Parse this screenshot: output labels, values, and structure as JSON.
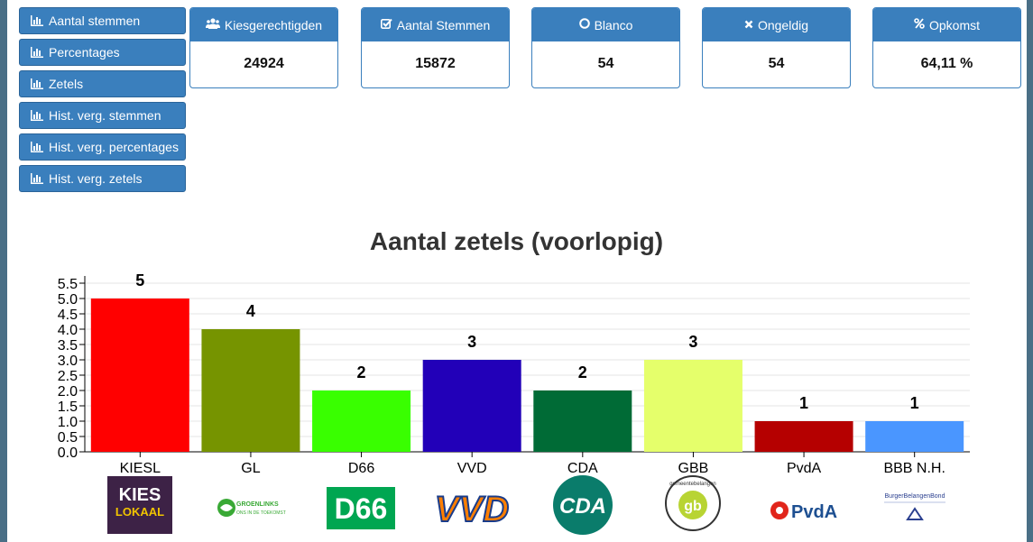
{
  "nav": {
    "items": [
      {
        "label": "Aantal stemmen"
      },
      {
        "label": "Percentages"
      },
      {
        "label": "Zetels"
      },
      {
        "label": "Hist. verg. stemmen"
      },
      {
        "label": "Hist. verg. percentages"
      },
      {
        "label": "Hist. verg. zetels"
      }
    ]
  },
  "stats": [
    {
      "label": "Kiesgerechtigden",
      "value": "24924",
      "icon": "users-icon"
    },
    {
      "label": "Aantal Stemmen",
      "value": "15872",
      "icon": "checkbox-icon"
    },
    {
      "label": "Blanco",
      "value": "54",
      "icon": "circle-icon"
    },
    {
      "label": "Ongeldig",
      "value": "54",
      "icon": "times-icon"
    },
    {
      "label": "Opkomst",
      "value": "64,11 %",
      "icon": "percent-icon"
    }
  ],
  "chart_data": {
    "type": "bar",
    "title": "Aantal zetels (voorlopig)",
    "categories": [
      "KIESL",
      "GL",
      "D66",
      "VVD",
      "CDA",
      "GBB",
      "PvdA",
      "BBB N.H."
    ],
    "values": [
      5,
      4,
      2,
      3,
      2,
      3,
      1,
      1
    ],
    "colors": [
      "#ff0000",
      "#769400",
      "#39ff00",
      "#2200b8",
      "#006b36",
      "#e5ff6b",
      "#b50000",
      "#4a96ff"
    ],
    "yticks": [
      "0.0",
      "0.5",
      "1.0",
      "1.5",
      "2.0",
      "2.5",
      "3.0",
      "3.5",
      "4.0",
      "4.5",
      "5.0",
      "5.5"
    ],
    "ylim": [
      0,
      5.5
    ],
    "grid": true,
    "logos": [
      {
        "name": "kies-lokaal-logo",
        "text": [
          "KIES",
          "LOKAAL"
        ]
      },
      {
        "name": "groenlinks-logo",
        "text": [
          "GROENLINKS",
          "ONS IN DE TOEKOMST"
        ]
      },
      {
        "name": "d66-logo",
        "text": [
          "D66"
        ]
      },
      {
        "name": "vvd-logo",
        "text": [
          "VVD"
        ]
      },
      {
        "name": "cda-logo",
        "text": [
          "CDA"
        ]
      },
      {
        "name": "gemeentebelangen-logo",
        "text": [
          "gb",
          "gemeentebelangen"
        ]
      },
      {
        "name": "pvda-logo",
        "text": [
          "PvdA"
        ]
      },
      {
        "name": "bbb-logo",
        "text": [
          "BurgerBelangenBond"
        ]
      }
    ]
  }
}
